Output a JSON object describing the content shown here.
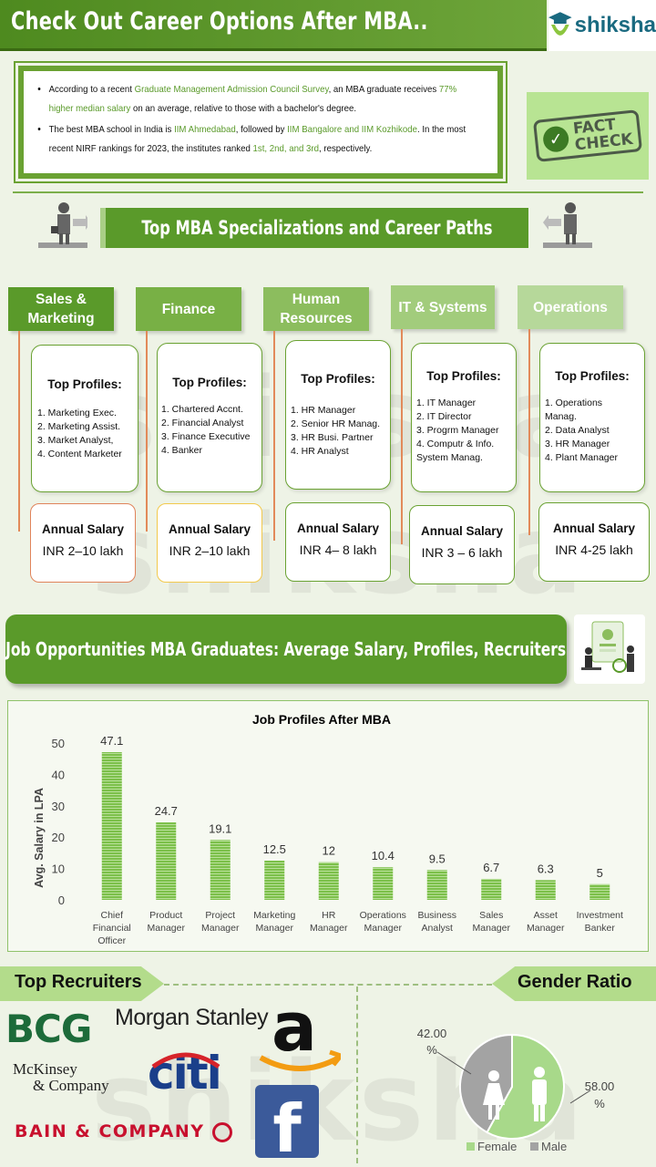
{
  "header": {
    "title": "Check Out Career Options After MBA..",
    "brand": "shiksha"
  },
  "facts": [
    {
      "pre": "According to a recent ",
      "h1": "Graduate Management Admission Council Survey",
      "mid": ", an MBA graduate receives ",
      "h2": "77% higher median salary",
      "post": " on an average, relative to those with a bachelor's degree."
    },
    {
      "pre": "The best MBA school in India is ",
      "h1": "IIM Ahmedabad",
      "mid": ", followed by ",
      "h2": "IIM Bangalore and IIM Kozhikode",
      "mid2": ". In the most recent NIRF rankings for 2023, the institutes ranked ",
      "h3": "1st, 2nd, and 3rd",
      "post": ", respectively."
    }
  ],
  "fact_check": {
    "line1": "FACT",
    "line2": "CHECK"
  },
  "spec_section": {
    "title": "Top MBA Specializations and Career Paths"
  },
  "specializations": [
    {
      "name": "Sales & Marketing",
      "profiles_title": "Top Profiles:",
      "profiles": [
        "1. Marketing Exec.",
        "2. Marketing Assist.",
        "3. Market Analyst,",
        "4. Content  Marketer"
      ],
      "salary_title": "Annual Salary",
      "salary": "INR 2–10 lakh",
      "color": "#5a9a2a",
      "border": "#e0835a"
    },
    {
      "name": "Finance",
      "profiles_title": "Top Profiles:",
      "profiles": [
        "1. Chartered  Accnt.",
        "2. Financial Analyst",
        "3. Finance Executive",
        "4. Banker"
      ],
      "salary_title": "Annual Salary",
      "salary": "INR 2–10 lakh",
      "color": "#78b045",
      "border": "#f2c94c"
    },
    {
      "name": "Human Resources",
      "profiles_title": "Top Profiles:",
      "profiles": [
        "1. HR Manager",
        "2. Senior  HR Manag.",
        "3. HR Busi. Partner",
        "4. HR Analyst"
      ],
      "salary_title": "Annual Salary",
      "salary": "INR 4– 8 lakh",
      "color": "#8cbd5e",
      "border": "#6aa232"
    },
    {
      "name": "IT & Systems",
      "profiles_title": "Top Profiles:",
      "profiles": [
        "1. IT Manager",
        "2. IT Director",
        "3. Progrm  Manager",
        "4. Computr  & Info.",
        "System Manag."
      ],
      "salary_title": "Annual Salary",
      "salary": "INR 3 – 6 lakh",
      "color": "#a2cc7c",
      "border": "#6aa232"
    },
    {
      "name": "Operations",
      "profiles_title": "Top Profiles:",
      "profiles": [
        "1. Operations",
        "Manag.",
        "2. Data Analyst",
        "3. HR Manager",
        "4. Plant Manager"
      ],
      "salary_title": "Annual Salary",
      "salary": "INR 4-25 lakh",
      "color": "#b6d89a",
      "border": "#6aa232"
    }
  ],
  "jobs_section": {
    "title": "Job Opportunities MBA Graduates: Average Salary, Profiles, Recruiters"
  },
  "chart_data": {
    "type": "bar",
    "title": "Job Profiles After MBA",
    "ylabel": "Avg. Salary in LPA",
    "xlabel": "",
    "ylim": [
      0,
      50
    ],
    "yticks": [
      0,
      10,
      20,
      30,
      40,
      50
    ],
    "categories": [
      "Chief Financial Officer",
      "Product Manager",
      "Project Manager",
      "Marketing Manager",
      "HR Manager",
      "Operations Manager",
      "Business Analyst",
      "Sales Manager",
      "Asset Manager",
      "Investment Banker"
    ],
    "category_lines": [
      [
        "Chief",
        "Financial",
        "Officer"
      ],
      [
        "Product",
        "Manager"
      ],
      [
        "Project",
        "Manager"
      ],
      [
        "Marketing",
        "Manager"
      ],
      [
        "HR",
        "Manager"
      ],
      [
        "Operations",
        "Manager"
      ],
      [
        "Business",
        "Analyst"
      ],
      [
        "Sales",
        "Manager"
      ],
      [
        "Asset",
        "Manager"
      ],
      [
        "Investment",
        "Banker"
      ]
    ],
    "values": [
      47.1,
      24.7,
      19.1,
      12.5,
      12,
      10.4,
      9.5,
      6.7,
      6.3,
      5
    ],
    "labels": [
      "47.1",
      "24.7",
      "19.1",
      "12.5",
      "12",
      "10.4",
      "9.5",
      "6.7",
      "6.3",
      "5"
    ],
    "bar_color": "#7cc04a",
    "grid": false
  },
  "recruiters": {
    "title": "Top Recruiters",
    "logos": [
      "BCG",
      "Morgan Stanley",
      "McKinsey",
      "& Company",
      "citi",
      "BAIN & COMPANY",
      "a",
      "f"
    ]
  },
  "gender": {
    "title": "Gender Ratio",
    "female_pct": 42,
    "male_pct": 58,
    "female_label_a": "42.00",
    "female_label_b": "%",
    "male_label_a": "58.00",
    "male_label_b": "%",
    "legend_female": "Female",
    "legend_male": "Male",
    "female_color": "#a8d98a",
    "male_color": "#a3a3a3"
  },
  "watermark": "shiksha"
}
